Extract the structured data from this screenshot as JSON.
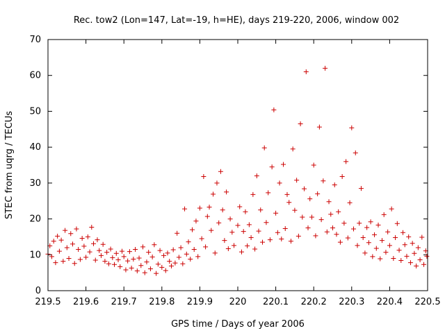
{
  "chart_data": {
    "type": "scatter",
    "title": "Rec. tow2 (Lon=147, Lat=-19, h=HE), days 219-220, 2006, window 002",
    "xlabel": "GPS time / Days of year 2006",
    "ylabel": "STEC from uqrg / TECUs",
    "xlim": [
      219.5,
      220.5
    ],
    "ylim": [
      0,
      70
    ],
    "xticks": [
      "219.5",
      "219.6",
      "219.7",
      "219.8",
      "219.9",
      "220",
      "220.1",
      "220.2",
      "220.3",
      "220.4",
      "220.5"
    ],
    "yticks": [
      "0",
      "10",
      "20",
      "30",
      "40",
      "50",
      "60",
      "70"
    ],
    "marker": "+",
    "color": "#cc0000",
    "series": [
      {
        "name": "STEC",
        "points": [
          [
            219.5,
            10.2
          ],
          [
            219.505,
            12.5
          ],
          [
            219.51,
            9.5
          ],
          [
            219.515,
            13.8
          ],
          [
            219.52,
            7.8
          ],
          [
            219.525,
            15.2
          ],
          [
            219.53,
            11.0
          ],
          [
            219.535,
            14.1
          ],
          [
            219.54,
            8.2
          ],
          [
            219.545,
            16.8
          ],
          [
            219.55,
            12.0
          ],
          [
            219.555,
            9.0
          ],
          [
            219.56,
            15.9
          ],
          [
            219.565,
            13.0
          ],
          [
            219.57,
            7.6
          ],
          [
            219.575,
            17.2
          ],
          [
            219.58,
            11.5
          ],
          [
            219.585,
            8.7
          ],
          [
            219.59,
            14.6
          ],
          [
            219.595,
            12.4
          ],
          [
            219.6,
            9.3
          ],
          [
            219.605,
            15.0
          ],
          [
            219.61,
            10.8
          ],
          [
            219.615,
            17.7
          ],
          [
            219.62,
            13.1
          ],
          [
            219.625,
            8.5
          ],
          [
            219.63,
            14.2
          ],
          [
            219.635,
            11.2
          ],
          [
            219.64,
            9.8
          ],
          [
            219.645,
            12.9
          ],
          [
            219.65,
            8.2
          ],
          [
            219.655,
            10.7
          ],
          [
            219.66,
            7.5
          ],
          [
            219.665,
            11.6
          ],
          [
            219.67,
            9.2
          ],
          [
            219.675,
            7.3
          ],
          [
            219.68,
            10.4
          ],
          [
            219.685,
            8.6
          ],
          [
            219.69,
            6.7
          ],
          [
            219.695,
            11.0
          ],
          [
            219.7,
            9.5
          ],
          [
            219.705,
            5.8
          ],
          [
            219.71,
            8.3
          ],
          [
            219.715,
            10.9
          ],
          [
            219.72,
            6.3
          ],
          [
            219.725,
            8.8
          ],
          [
            219.73,
            11.5
          ],
          [
            219.735,
            5.5
          ],
          [
            219.74,
            9.1
          ],
          [
            219.745,
            7.0
          ],
          [
            219.75,
            12.2
          ],
          [
            219.755,
            5.0
          ],
          [
            219.76,
            8.0
          ],
          [
            219.765,
            10.7
          ],
          [
            219.77,
            6.1
          ],
          [
            219.775,
            9.4
          ],
          [
            219.78,
            12.8
          ],
          [
            219.785,
            4.8
          ],
          [
            219.79,
            7.4
          ],
          [
            219.795,
            11.2
          ],
          [
            219.8,
            6.5
          ],
          [
            219.805,
            9.8
          ],
          [
            219.81,
            5.6
          ],
          [
            219.815,
            10.5
          ],
          [
            219.82,
            8.2
          ],
          [
            219.825,
            6.9
          ],
          [
            219.83,
            11.4
          ],
          [
            219.835,
            7.7
          ],
          [
            219.84,
            16.0
          ],
          [
            219.845,
            9.3
          ],
          [
            219.85,
            12.0
          ],
          [
            219.855,
            7.5
          ],
          [
            219.86,
            22.8
          ],
          [
            219.865,
            10.2
          ],
          [
            219.87,
            13.6
          ],
          [
            219.875,
            8.8
          ],
          [
            219.88,
            17.0
          ],
          [
            219.885,
            11.5
          ],
          [
            219.89,
            19.4
          ],
          [
            219.895,
            9.5
          ],
          [
            219.9,
            23.0
          ],
          [
            219.905,
            14.5
          ],
          [
            219.91,
            31.8
          ],
          [
            219.915,
            12.2
          ],
          [
            219.92,
            20.7
          ],
          [
            219.925,
            23.3
          ],
          [
            219.93,
            16.8
          ],
          [
            219.935,
            26.9
          ],
          [
            219.94,
            10.5
          ],
          [
            219.945,
            30.0
          ],
          [
            219.95,
            18.9
          ],
          [
            219.955,
            33.2
          ],
          [
            219.96,
            22.5
          ],
          [
            219.965,
            14.0
          ],
          [
            219.97,
            27.5
          ],
          [
            219.975,
            11.7
          ],
          [
            219.98,
            20.0
          ],
          [
            219.985,
            16.3
          ],
          [
            219.99,
            12.6
          ],
          [
            220.0,
            18.2
          ],
          [
            220.005,
            23.4
          ],
          [
            220.01,
            10.8
          ],
          [
            220.015,
            16.5
          ],
          [
            220.02,
            22.0
          ],
          [
            220.025,
            12.5
          ],
          [
            220.03,
            18.4
          ],
          [
            220.035,
            14.8
          ],
          [
            220.04,
            26.8
          ],
          [
            220.045,
            11.6
          ],
          [
            220.05,
            32.0
          ],
          [
            220.055,
            16.6
          ],
          [
            220.06,
            22.5
          ],
          [
            220.065,
            13.5
          ],
          [
            220.07,
            39.8
          ],
          [
            220.075,
            19.0
          ],
          [
            220.08,
            27.3
          ],
          [
            220.085,
            14.2
          ],
          [
            220.09,
            34.5
          ],
          [
            220.095,
            50.4
          ],
          [
            220.1,
            21.6
          ],
          [
            220.105,
            16.2
          ],
          [
            220.11,
            30.0
          ],
          [
            220.115,
            14.4
          ],
          [
            220.12,
            35.2
          ],
          [
            220.125,
            17.3
          ],
          [
            220.13,
            26.8
          ],
          [
            220.135,
            24.6
          ],
          [
            220.14,
            13.8
          ],
          [
            220.145,
            39.5
          ],
          [
            220.15,
            22.4
          ],
          [
            220.155,
            30.8
          ],
          [
            220.16,
            15.2
          ],
          [
            220.165,
            46.5
          ],
          [
            220.17,
            20.5
          ],
          [
            220.175,
            28.4
          ],
          [
            220.18,
            61.0
          ],
          [
            220.185,
            17.5
          ],
          [
            220.19,
            25.6
          ],
          [
            220.195,
            20.5
          ],
          [
            220.2,
            35.0
          ],
          [
            220.205,
            15.3
          ],
          [
            220.21,
            27.0
          ],
          [
            220.215,
            45.6
          ],
          [
            220.22,
            19.8
          ],
          [
            220.225,
            30.6
          ],
          [
            220.23,
            62.0
          ],
          [
            220.235,
            16.4
          ],
          [
            220.24,
            24.8
          ],
          [
            220.245,
            21.3
          ],
          [
            220.25,
            17.5
          ],
          [
            220.255,
            29.5
          ],
          [
            220.26,
            15.7
          ],
          [
            220.265,
            22.0
          ],
          [
            220.27,
            13.5
          ],
          [
            220.275,
            31.8
          ],
          [
            220.28,
            18.8
          ],
          [
            220.285,
            36.0
          ],
          [
            220.29,
            14.7
          ],
          [
            220.295,
            24.5
          ],
          [
            220.3,
            45.4
          ],
          [
            220.305,
            17.2
          ],
          [
            220.31,
            38.4
          ],
          [
            220.315,
            12.6
          ],
          [
            220.32,
            18.8
          ],
          [
            220.325,
            28.5
          ],
          [
            220.33,
            14.8
          ],
          [
            220.335,
            10.5
          ],
          [
            220.34,
            17.6
          ],
          [
            220.345,
            13.4
          ],
          [
            220.35,
            19.2
          ],
          [
            220.355,
            9.5
          ],
          [
            220.36,
            15.6
          ],
          [
            220.365,
            11.8
          ],
          [
            220.37,
            18.3
          ],
          [
            220.375,
            8.9
          ],
          [
            220.38,
            14.0
          ],
          [
            220.385,
            21.2
          ],
          [
            220.39,
            10.7
          ],
          [
            220.395,
            16.4
          ],
          [
            220.4,
            12.6
          ],
          [
            220.405,
            22.8
          ],
          [
            220.41,
            9.0
          ],
          [
            220.415,
            14.8
          ],
          [
            220.42,
            18.7
          ],
          [
            220.425,
            11.3
          ],
          [
            220.43,
            8.4
          ],
          [
            220.435,
            16.2
          ],
          [
            220.44,
            12.8
          ],
          [
            220.445,
            9.6
          ],
          [
            220.45,
            15.0
          ],
          [
            220.455,
            7.8
          ],
          [
            220.46,
            13.2
          ],
          [
            220.465,
            10.4
          ],
          [
            220.47,
            6.9
          ],
          [
            220.475,
            12.0
          ],
          [
            220.48,
            8.6
          ],
          [
            220.485,
            14.9
          ],
          [
            220.49,
            7.3
          ],
          [
            220.495,
            11.1
          ],
          [
            220.498,
            9.6
          ]
        ]
      }
    ]
  }
}
